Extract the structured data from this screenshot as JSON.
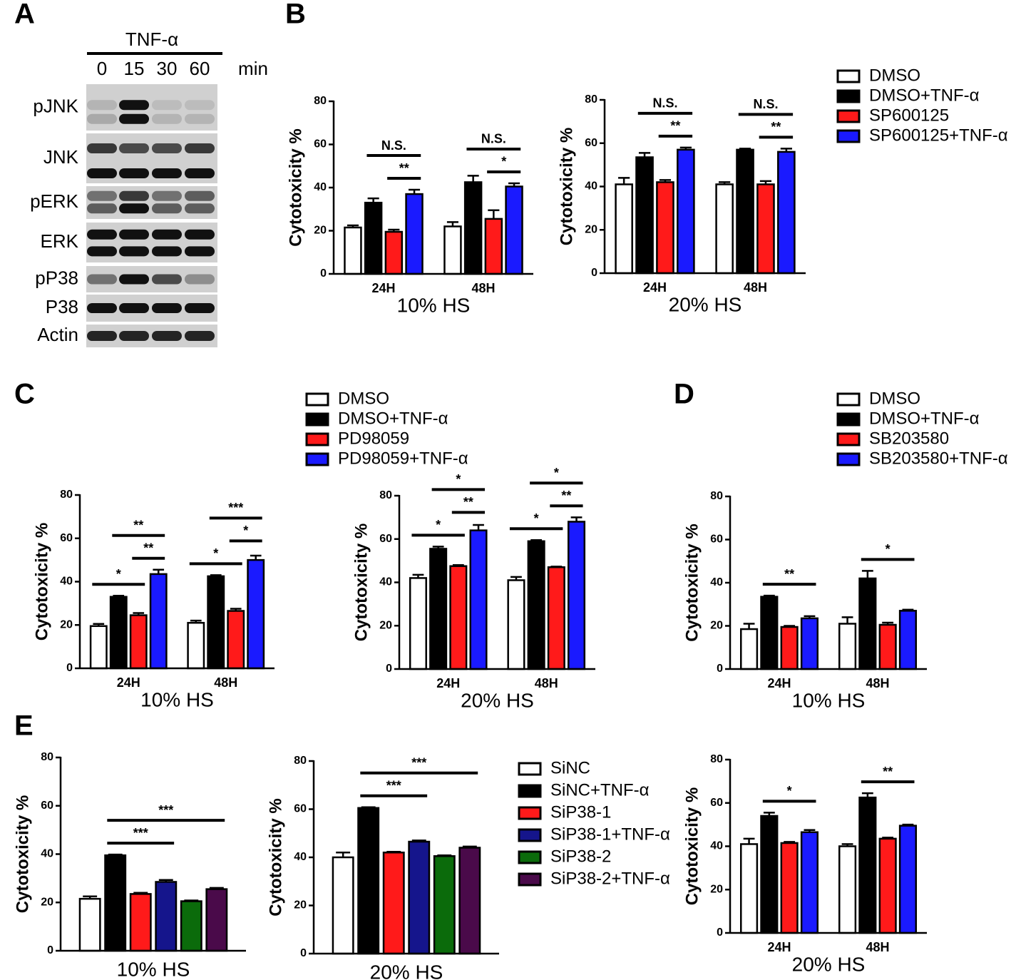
{
  "blot": {
    "panel": "A",
    "treatment": "TNF-α",
    "times": [
      "0",
      "15",
      "30",
      "60"
    ],
    "time_unit": "min",
    "rows": [
      "pJNK",
      "JNK",
      "pERK",
      "ERK",
      "pP38",
      "P38",
      "Actin"
    ]
  },
  "chart_data": [
    {
      "panel": "B",
      "type": "bar",
      "legend": [
        {
          "name": "DMSO",
          "color": "#ffffff"
        },
        {
          "name": "DMSO+TNF-α",
          "color": "#000000"
        },
        {
          "name": "SP600125",
          "color": "#ff1a1a"
        },
        {
          "name": "SP600125+TNF-α",
          "color": "#1a1aff"
        }
      ],
      "charts": [
        {
          "ylabel": "Cytotoxicity %",
          "xlabel": "10% HS",
          "categories": [
            "24H",
            "48H"
          ],
          "ylim": [
            0,
            80
          ],
          "yticks": [
            0,
            20,
            40,
            60,
            80
          ],
          "series": [
            {
              "values": [
                21.5,
                22
              ],
              "errors": [
                1,
                2
              ]
            },
            {
              "values": [
                33,
                42.5
              ],
              "errors": [
                2,
                3
              ]
            },
            {
              "values": [
                19.5,
                25.5
              ],
              "errors": [
                1,
                4
              ]
            },
            {
              "values": [
                37,
                40.5
              ],
              "errors": [
                2,
                1.5
              ]
            }
          ],
          "annotations": [
            {
              "text": "**",
              "category": 0,
              "from": 2,
              "to": 3
            },
            {
              "text": "N.S.",
              "category": 0,
              "from": 1,
              "to": 3
            },
            {
              "text": "*",
              "category": 1,
              "from": 2,
              "to": 3
            },
            {
              "text": "N.S.",
              "category": 1,
              "from": 1,
              "to": 3
            }
          ]
        },
        {
          "ylabel": "Cytotoxicity %",
          "xlabel": "20% HS",
          "categories": [
            "24H",
            "48H"
          ],
          "ylim": [
            0,
            80
          ],
          "yticks": [
            0,
            20,
            40,
            60,
            80
          ],
          "series": [
            {
              "values": [
                41,
                41
              ],
              "errors": [
                3,
                1
              ]
            },
            {
              "values": [
                53.5,
                57
              ],
              "errors": [
                2,
                0.5
              ]
            },
            {
              "values": [
                42,
                41
              ],
              "errors": [
                1,
                1.5
              ]
            },
            {
              "values": [
                57,
                56
              ],
              "errors": [
                1,
                1.5
              ]
            }
          ],
          "annotations": [
            {
              "text": "**",
              "category": 0,
              "from": 2,
              "to": 3
            },
            {
              "text": "N.S.",
              "category": 0,
              "from": 1,
              "to": 3
            },
            {
              "text": "**",
              "category": 1,
              "from": 2,
              "to": 3
            },
            {
              "text": "N.S.",
              "category": 1,
              "from": 1,
              "to": 3
            }
          ]
        }
      ]
    },
    {
      "panel": "C",
      "type": "bar",
      "legend": [
        {
          "name": "DMSO",
          "color": "#ffffff"
        },
        {
          "name": "DMSO+TNF-α",
          "color": "#000000"
        },
        {
          "name": "PD98059",
          "color": "#ff1a1a"
        },
        {
          "name": "PD98059+TNF-α",
          "color": "#1a1aff"
        }
      ],
      "charts": [
        {
          "ylabel": "Cytotoxicity %",
          "xlabel": "10% HS",
          "categories": [
            "24H",
            "48H"
          ],
          "ylim": [
            0,
            80
          ],
          "yticks": [
            0,
            20,
            40,
            60,
            80
          ],
          "series": [
            {
              "values": [
                19.5,
                21
              ],
              "errors": [
                1,
                1
              ]
            },
            {
              "values": [
                33,
                42.5
              ],
              "errors": [
                0.5,
                0.5
              ]
            },
            {
              "values": [
                24.5,
                26.5
              ],
              "errors": [
                1,
                1
              ]
            },
            {
              "values": [
                43.5,
                50
              ],
              "errors": [
                2,
                2
              ]
            }
          ],
          "annotations": [
            {
              "text": "*",
              "category": 0,
              "from": 0,
              "to": 2
            },
            {
              "text": "**",
              "category": 0,
              "from": 2,
              "to": 3
            },
            {
              "text": "**",
              "category": 0,
              "from": 1,
              "to": 3
            },
            {
              "text": "*",
              "category": 1,
              "from": 0,
              "to": 2
            },
            {
              "text": "*",
              "category": 1,
              "from": 2,
              "to": 3
            },
            {
              "text": "***",
              "category": 1,
              "from": 1,
              "to": 3
            }
          ]
        },
        {
          "ylabel": "Cytotoxicity %",
          "xlabel": "20% HS",
          "categories": [
            "24H",
            "48H"
          ],
          "ylim": [
            0,
            80
          ],
          "yticks": [
            0,
            20,
            40,
            60,
            80
          ],
          "series": [
            {
              "values": [
                42,
                41
              ],
              "errors": [
                1.5,
                1.5
              ]
            },
            {
              "values": [
                55.5,
                59
              ],
              "errors": [
                1,
                0.5
              ]
            },
            {
              "values": [
                47.5,
                47
              ],
              "errors": [
                0.5,
                0.3
              ]
            },
            {
              "values": [
                64,
                68
              ],
              "errors": [
                2.5,
                2
              ]
            }
          ],
          "annotations": [
            {
              "text": "*",
              "category": 0,
              "from": 0,
              "to": 2
            },
            {
              "text": "**",
              "category": 0,
              "from": 2,
              "to": 3
            },
            {
              "text": "*",
              "category": 0,
              "from": 1,
              "to": 3
            },
            {
              "text": "*",
              "category": 1,
              "from": 0,
              "to": 2
            },
            {
              "text": "**",
              "category": 1,
              "from": 2,
              "to": 3
            },
            {
              "text": "*",
              "category": 1,
              "from": 1,
              "to": 3
            }
          ]
        }
      ]
    },
    {
      "panel": "D",
      "type": "bar",
      "legend": [
        {
          "name": "DMSO",
          "color": "#ffffff"
        },
        {
          "name": "DMSO+TNF-α",
          "color": "#000000"
        },
        {
          "name": "SB203580",
          "color": "#ff1a1a"
        },
        {
          "name": "SB203580+TNF-α",
          "color": "#1a1aff"
        }
      ],
      "charts": [
        {
          "ylabel": "Cytotoxicity %",
          "xlabel": "10% HS",
          "categories": [
            "24H",
            "48H"
          ],
          "ylim": [
            0,
            80
          ],
          "yticks": [
            0,
            20,
            40,
            60,
            80
          ],
          "series": [
            {
              "values": [
                18.5,
                21
              ],
              "errors": [
                2.5,
                3
              ]
            },
            {
              "values": [
                33.5,
                42
              ],
              "errors": [
                0.5,
                3.5
              ]
            },
            {
              "values": [
                19.5,
                20.5
              ],
              "errors": [
                0.5,
                1
              ]
            },
            {
              "values": [
                23.5,
                27
              ],
              "errors": [
                1,
                0.5
              ]
            }
          ],
          "annotations": [
            {
              "text": "**",
              "category": 0,
              "from": 1,
              "to": 3
            },
            {
              "text": "*",
              "category": 1,
              "from": 1,
              "to": 3
            }
          ]
        },
        {
          "ylabel": "Cytotoxicity %",
          "xlabel": "20% HS",
          "categories": [
            "24H",
            "48H"
          ],
          "ylim": [
            0,
            80
          ],
          "yticks": [
            0,
            20,
            40,
            60,
            80
          ],
          "series": [
            {
              "values": [
                41,
                40
              ],
              "errors": [
                2.5,
                1
              ]
            },
            {
              "values": [
                54,
                62.5
              ],
              "errors": [
                1.5,
                2
              ]
            },
            {
              "values": [
                41.5,
                43.5
              ],
              "errors": [
                0.5,
                0.5
              ]
            },
            {
              "values": [
                46.5,
                49.5
              ],
              "errors": [
                1,
                0.5
              ]
            }
          ],
          "annotations": [
            {
              "text": "*",
              "category": 0,
              "from": 1,
              "to": 3
            },
            {
              "text": "**",
              "category": 1,
              "from": 1,
              "to": 3
            }
          ]
        }
      ]
    },
    {
      "panel": "E",
      "type": "bar",
      "legend": [
        {
          "name": "SiNC",
          "color": "#ffffff"
        },
        {
          "name": "SiNC+TNF-α",
          "color": "#000000"
        },
        {
          "name": "SiP38-1",
          "color": "#ff1a1a"
        },
        {
          "name": "SiP38-1+TNF-α",
          "color": "#15158c"
        },
        {
          "name": "SiP38-2",
          "color": "#0b6b0b"
        },
        {
          "name": "SiP38-2+TNF-α",
          "color": "#4a0a4a"
        }
      ],
      "charts": [
        {
          "ylabel": "Cytotoxicity %",
          "xlabel": "10% HS",
          "categories": [
            null
          ],
          "ylim": [
            0,
            80
          ],
          "yticks": [
            0,
            20,
            40,
            60,
            80
          ],
          "series": [
            {
              "values": [
                21.5
              ],
              "errors": [
                1
              ]
            },
            {
              "values": [
                39.5
              ],
              "errors": [
                0.3
              ]
            },
            {
              "values": [
                23.5
              ],
              "errors": [
                0.5
              ]
            },
            {
              "values": [
                28.5
              ],
              "errors": [
                0.8
              ]
            },
            {
              "values": [
                20.5
              ],
              "errors": [
                0.3
              ]
            },
            {
              "values": [
                25.5
              ],
              "errors": [
                0.5
              ]
            }
          ],
          "annotations": [
            {
              "text": "***",
              "category": 0,
              "from": 1,
              "to": 3
            },
            {
              "text": "***",
              "category": 0,
              "from": 1,
              "to": 5
            }
          ]
        },
        {
          "ylabel": "Cytotoxicity %",
          "xlabel": "20% HS",
          "categories": [
            null
          ],
          "ylim": [
            0,
            80
          ],
          "yticks": [
            0,
            20,
            40,
            60,
            80
          ],
          "series": [
            {
              "values": [
                40
              ],
              "errors": [
                2
              ]
            },
            {
              "values": [
                60.5
              ],
              "errors": [
                0.3
              ]
            },
            {
              "values": [
                42
              ],
              "errors": [
                0.3
              ]
            },
            {
              "values": [
                46.5
              ],
              "errors": [
                0.5
              ]
            },
            {
              "values": [
                40.5
              ],
              "errors": [
                0.3
              ]
            },
            {
              "values": [
                44
              ],
              "errors": [
                0.5
              ]
            }
          ],
          "annotations": [
            {
              "text": "***",
              "category": 0,
              "from": 1,
              "to": 3
            },
            {
              "text": "***",
              "category": 0,
              "from": 1,
              "to": 5
            }
          ]
        }
      ]
    }
  ]
}
